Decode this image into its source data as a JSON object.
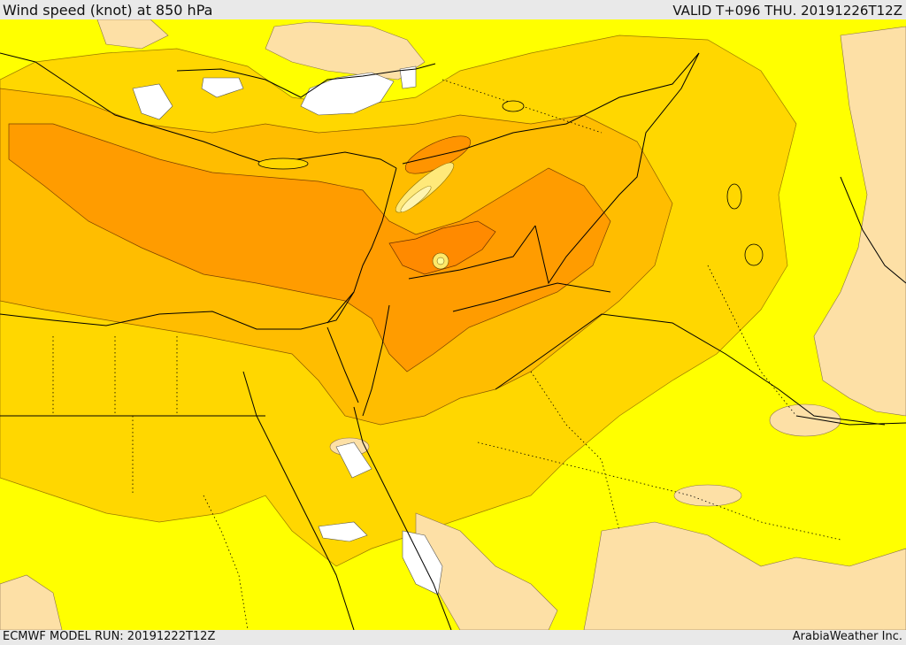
{
  "header": {
    "title": "Wind speed (knot) at 850 hPa",
    "valid_time": "VALID T+096 THU. 20191226T12Z"
  },
  "footer": {
    "model_run": "ECMWF MODEL RUN: 20191222T12Z",
    "credit": "ArabiaWeather Inc."
  },
  "colors": {
    "calm": "#ffffff",
    "light": "#fde0a6",
    "moderate": "#ffff00",
    "fresh": "#ffd700",
    "strong": "#ffbd00",
    "very_strong": "#ff9c00",
    "jet_core": "#ff8800",
    "borders": "#000000"
  }
}
